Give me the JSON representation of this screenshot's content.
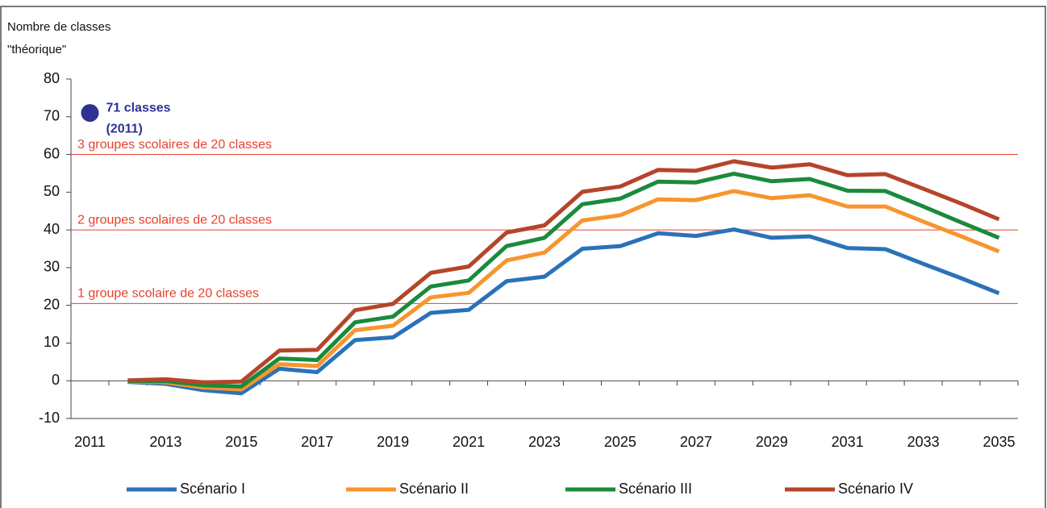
{
  "chart_data": {
    "type": "line",
    "y_axis_label": [
      "Nombre de classes",
      "\"théorique\""
    ],
    "categories": [
      "2011",
      null,
      "2013",
      null,
      "2015",
      null,
      "2017",
      null,
      "2019",
      null,
      "2021",
      null,
      "2023",
      null,
      "2025",
      null,
      "2027",
      null,
      "2029",
      null,
      "2031",
      null,
      "2033",
      null,
      "2035"
    ],
    "series": [
      {
        "name": "Scénario I",
        "color": "#2a72b8",
        "values": [
          null,
          -0.3,
          -0.8,
          -2.5,
          -3.3,
          3.2,
          2.3,
          10.8,
          11.5,
          18,
          18.8,
          26.4,
          27.6,
          35,
          35.7,
          39.1,
          38.4,
          40.1,
          37.9,
          38.3,
          35.2,
          34.9,
          31,
          27.2,
          23.2
        ]
      },
      {
        "name": "Scénario II",
        "color": "#f7952e",
        "values": [
          null,
          -0.2,
          -0.4,
          -1.8,
          -2.3,
          4.4,
          3.9,
          13.4,
          14.6,
          22.1,
          23.3,
          31.9,
          34,
          42.5,
          43.9,
          48.1,
          47.9,
          50.3,
          48.4,
          49.2,
          46.2,
          46.2,
          42.2,
          38.3,
          34.3
        ]
      },
      {
        "name": "Scénario III",
        "color": "#1a8a3c",
        "values": [
          null,
          -0.1,
          -0.1,
          -1.2,
          -1.5,
          5.9,
          5.5,
          15.5,
          17,
          25,
          26.6,
          35.7,
          37.9,
          46.8,
          48.3,
          52.8,
          52.6,
          54.9,
          52.9,
          53.5,
          50.4,
          50.3,
          46.2,
          42,
          37.9
        ]
      },
      {
        "name": "Scénario IV",
        "color": "#b5452a",
        "values": [
          null,
          0.1,
          0.4,
          -0.4,
          -0.2,
          8,
          8.2,
          18.7,
          20.4,
          28.6,
          30.3,
          39.3,
          41.2,
          50.1,
          51.5,
          55.9,
          55.7,
          58.2,
          56.5,
          57.4,
          54.5,
          54.8,
          50.9,
          47,
          42.8
        ]
      }
    ],
    "ylim": [
      -10,
      80
    ],
    "yticks": [
      -10,
      0,
      10,
      20,
      30,
      40,
      50,
      60,
      70,
      80
    ],
    "reference_lines": [
      {
        "value": 60,
        "label": "3 groupes scolaires de 20 classes"
      },
      {
        "value": 40,
        "label": "2 groupes scolaires de 20 classes"
      },
      {
        "value": 20.5,
        "label": "1 groupe scolaire de 20 classes"
      }
    ],
    "reference_color": "#e8412c",
    "annotation": {
      "value": 71,
      "text": [
        "71 classes",
        "(2011)"
      ],
      "color": "#2e3192"
    },
    "legend": "bottom"
  }
}
